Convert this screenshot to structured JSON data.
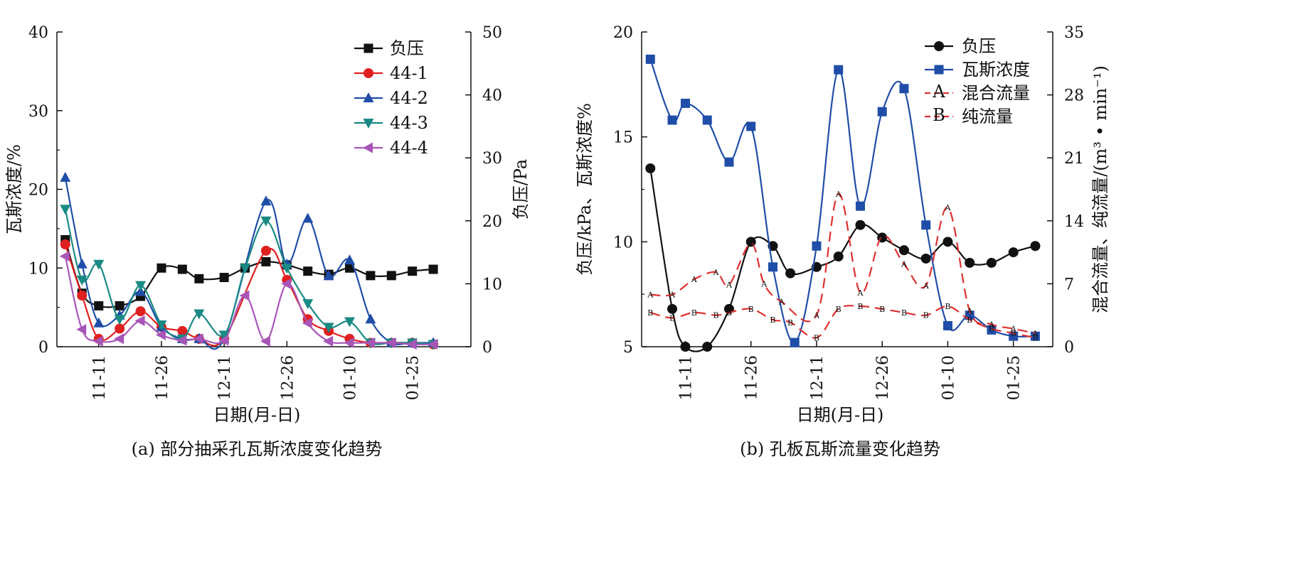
{
  "chart_data": [
    {
      "id": "a",
      "type": "line",
      "caption": "(a) 部分抽采孔瓦斯浓度变化趋势",
      "xlabel": "日期(月-日)",
      "ylabel_left": "瓦斯浓度/%",
      "ylabel_right": "负压/Pa",
      "ylim_left": [
        0,
        40
      ],
      "ylim_right": [
        0,
        50
      ],
      "yticks_left": [
        "0",
        "10",
        "20",
        "30",
        "40"
      ],
      "yticks_right": [
        "0",
        "10",
        "20",
        "30",
        "40",
        "50"
      ],
      "x_tick_labels": [
        "11-11",
        "11-26",
        "12-11",
        "12-26",
        "01-10",
        "01-25"
      ],
      "x_tick_dates": [
        "2023-11-11",
        "2023-11-26",
        "2023-12-11",
        "2023-12-26",
        "2024-01-10",
        "2024-01-25"
      ],
      "x_range": [
        "2023-11-01",
        "2024-02-08"
      ],
      "legend_position": "top-right",
      "series": [
        {
          "name": "负压",
          "axis": "right",
          "color": "#111111",
          "marker": "square",
          "x": [
            "2023-11-03",
            "2023-11-07",
            "2023-11-11",
            "2023-11-16",
            "2023-11-21",
            "2023-11-26",
            "2023-11-31",
            "2023-12-05",
            "2023-12-11",
            "2023-12-16",
            "2023-12-21",
            "2023-12-26",
            "2023-12-31",
            "2024-01-05",
            "2024-01-10",
            "2024-01-15",
            "2024-01-20",
            "2024-01-25",
            "2024-01-30"
          ],
          "values": [
            17,
            8.5,
            6.5,
            6.5,
            8,
            12.5,
            12.3,
            10.8,
            11,
            12.5,
            13.5,
            13,
            12,
            11.5,
            12.5,
            11.3,
            11.3,
            12,
            12.3
          ]
        },
        {
          "name": "44-1",
          "axis": "left",
          "color": "#e01f1f",
          "marker": "circle",
          "x": [
            "2023-11-03",
            "2023-11-07",
            "2023-11-11",
            "2023-11-16",
            "2023-11-21",
            "2023-11-26",
            "2023-11-31",
            "2023-12-05",
            "2023-12-11",
            "2023-12-21",
            "2023-12-26",
            "2023-12-31",
            "2024-01-05",
            "2024-01-10",
            "2024-01-15",
            "2024-01-20",
            "2024-01-25",
            "2024-01-30"
          ],
          "values": [
            13,
            6.5,
            1,
            2.3,
            4.5,
            2.5,
            2,
            1,
            1,
            12.2,
            8.5,
            3.5,
            2,
            1,
            0.5,
            0.5,
            0.5,
            0.3
          ]
        },
        {
          "name": "44-2",
          "axis": "left",
          "color": "#1f4ea8",
          "marker": "triangle-up",
          "x": [
            "2023-11-03",
            "2023-11-07",
            "2023-11-11",
            "2023-11-16",
            "2023-11-21",
            "2023-11-26",
            "2023-11-31",
            "2023-12-05",
            "2023-12-11",
            "2023-12-21",
            "2023-12-26",
            "2023-12-31",
            "2024-01-05",
            "2024-01-10",
            "2024-01-15",
            "2024-01-20",
            "2024-01-25",
            "2024-01-30"
          ],
          "values": [
            21.5,
            10.5,
            3,
            4,
            7,
            2.5,
            1,
            1,
            1,
            18.5,
            10.5,
            16.3,
            9,
            11,
            3.5,
            0.5,
            0.5,
            0.5
          ]
        },
        {
          "name": "44-3",
          "axis": "left",
          "color": "#1a8a84",
          "marker": "triangle-down",
          "x": [
            "2023-11-03",
            "2023-11-07",
            "2023-11-11",
            "2023-11-16",
            "2023-11-21",
            "2023-11-26",
            "2023-11-31",
            "2023-12-05",
            "2023-12-11",
            "2023-12-16",
            "2023-12-21",
            "2023-12-26",
            "2023-12-31",
            "2024-01-05",
            "2024-01-10",
            "2024-01-15",
            "2024-01-20",
            "2024-01-25",
            "2024-01-30"
          ],
          "values": [
            17.5,
            8.5,
            10.5,
            3.5,
            7.8,
            2.8,
            1,
            4.2,
            1.5,
            10,
            16,
            10,
            5.5,
            2.5,
            3.2,
            0.5,
            0.5,
            0.5,
            0.3
          ]
        },
        {
          "name": "44-4",
          "axis": "left",
          "color": "#a855b8",
          "marker": "triangle-left",
          "x": [
            "2023-11-03",
            "2023-11-07",
            "2023-11-11",
            "2023-11-16",
            "2023-11-21",
            "2023-11-26",
            "2023-11-31",
            "2023-12-05",
            "2023-12-11",
            "2023-12-16",
            "2023-12-21",
            "2023-12-26",
            "2023-12-31",
            "2024-01-05",
            "2024-01-10",
            "2024-01-15",
            "2024-01-20",
            "2024-01-25",
            "2024-01-30"
          ],
          "values": [
            11.5,
            2.2,
            0.7,
            1,
            3.3,
            1.5,
            0.8,
            1,
            0.8,
            6.5,
            0.7,
            8,
            3,
            0.7,
            0.5,
            0.5,
            0.5,
            0.3,
            0.3
          ]
        }
      ]
    },
    {
      "id": "b",
      "type": "line",
      "caption": "(b) 孔板瓦斯流量变化趋势",
      "xlabel": "日期(月-日)",
      "ylabel_left": "负压/kPa、瓦斯浓度%",
      "ylabel_right": "混合流量、纯流量/(m³ • min⁻¹)",
      "ylim_left": [
        5,
        20
      ],
      "ylim_right": [
        0,
        35
      ],
      "yticks_left": [
        "5",
        "10",
        "15",
        "20"
      ],
      "yticks_right": [
        "0",
        "7",
        "14",
        "21",
        "28",
        "35"
      ],
      "x_tick_labels": [
        "11-11",
        "11-26",
        "12-11",
        "12-26",
        "01-10",
        "01-25"
      ],
      "x_tick_dates": [
        "2023-11-11",
        "2023-11-26",
        "2023-12-11",
        "2023-12-26",
        "2024-01-10",
        "2024-01-25"
      ],
      "x_range": [
        "2023-11-01",
        "2024-02-03"
      ],
      "legend_position": "top-right",
      "series": [
        {
          "name": "负压",
          "axis": "left",
          "color": "#111111",
          "marker": "circle",
          "x": [
            "2023-11-03",
            "2023-11-08",
            "2023-11-11",
            "2023-11-16",
            "2023-11-21",
            "2023-11-26",
            "2023-11-31",
            "2023-12-05",
            "2023-12-11",
            "2023-12-16",
            "2023-12-21",
            "2023-12-26",
            "2023-12-31",
            "2024-01-05",
            "2024-01-10",
            "2024-01-15",
            "2024-01-20",
            "2024-01-25",
            "2024-01-30"
          ],
          "values": [
            13.5,
            6.8,
            5,
            5,
            6.8,
            10,
            9.8,
            8.5,
            8.8,
            9.3,
            10.8,
            10.2,
            9.6,
            9.2,
            10,
            9,
            9,
            9.5,
            9.8
          ]
        },
        {
          "name": "瓦斯浓度",
          "axis": "left",
          "color": "#1f4ea8",
          "marker": "square",
          "x": [
            "2023-11-03",
            "2023-11-08",
            "2023-11-11",
            "2023-11-16",
            "2023-11-21",
            "2023-11-26",
            "2023-11-31",
            "2023-12-06",
            "2023-12-11",
            "2023-12-16",
            "2023-12-21",
            "2023-12-26",
            "2023-12-31",
            "2024-01-05",
            "2024-01-10",
            "2024-01-15",
            "2024-01-20",
            "2024-01-25",
            "2024-01-30"
          ],
          "values": [
            18.7,
            15.8,
            16.6,
            15.8,
            13.8,
            15.5,
            8.8,
            5.2,
            9.8,
            18.2,
            11.7,
            16.2,
            17.3,
            10.8,
            6,
            6.5,
            5.8,
            5.5,
            5.5
          ]
        },
        {
          "name": "混合流量",
          "axis": "right",
          "color": "#e03030",
          "marker": "A",
          "x": [
            "2023-11-03",
            "2023-11-08",
            "2023-11-13",
            "2023-11-18",
            "2023-11-21",
            "2023-11-26",
            "2023-11-29",
            "2023-12-03",
            "2023-12-11",
            "2023-12-16",
            "2023-12-21",
            "2023-12-26",
            "2023-12-31",
            "2024-01-05",
            "2024-01-10",
            "2024-01-15",
            "2024-01-20",
            "2024-01-25",
            "2024-01-30"
          ],
          "values": [
            5.8,
            5.8,
            7.5,
            8.3,
            6.9,
            11.5,
            7,
            5,
            3.5,
            17,
            6,
            12.3,
            9.2,
            6.8,
            15.5,
            4,
            2.5,
            2,
            1.5
          ]
        },
        {
          "name": "纯流量",
          "axis": "right",
          "color": "#e03030",
          "marker": "B",
          "x": [
            "2023-11-03",
            "2023-11-08",
            "2023-11-13",
            "2023-11-18",
            "2023-11-21",
            "2023-11-26",
            "2023-11-31",
            "2023-12-05",
            "2023-12-11",
            "2023-12-16",
            "2023-12-21",
            "2023-12-26",
            "2023-12-31",
            "2024-01-05",
            "2024-01-10",
            "2024-01-15",
            "2024-01-20",
            "2024-01-25",
            "2024-01-30"
          ],
          "values": [
            3.8,
            3.2,
            3.8,
            3.5,
            3.8,
            4.2,
            3,
            2.7,
            1,
            4.2,
            4.5,
            4.2,
            3.8,
            3.5,
            4.5,
            3,
            2,
            1.5,
            1
          ]
        }
      ]
    }
  ]
}
